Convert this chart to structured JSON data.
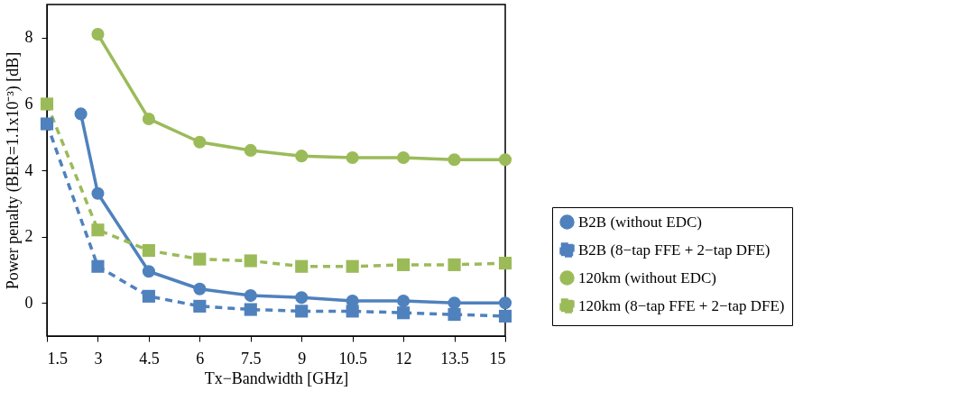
{
  "chart_data": {
    "type": "line",
    "xlabel": "Tx−Bandwidth [GHz]",
    "ylabel": "Power penalty (BER=1.1x10⁻³) [dB]",
    "xlim": [
      1.5,
      15
    ],
    "xticks": [
      1.5,
      3,
      4.5,
      6,
      7.5,
      9,
      10.5,
      12,
      13.5,
      15
    ],
    "ylim": [
      -1,
      9
    ],
    "yticks": [
      0,
      2,
      4,
      6,
      8
    ],
    "grid": false,
    "legend": "right",
    "series": [
      {
        "name": "B2B (without EDC)",
        "color": "#4f81bd",
        "marker": "circle",
        "line_style": "solid",
        "x": [
          2.5,
          3,
          4.5,
          6,
          7.5,
          9,
          10.5,
          12,
          13.5,
          15
        ],
        "values": [
          5.7,
          3.3,
          0.95,
          0.42,
          0.22,
          0.16,
          0.06,
          0.06,
          0.0,
          0.0
        ]
      },
      {
        "name": "B2B (8−tap FFE + 2−tap DFE)",
        "color": "#4f81bd",
        "marker": "square",
        "line_style": "dashed",
        "x": [
          1.5,
          3,
          4.5,
          6,
          7.5,
          9,
          10.5,
          12,
          13.5,
          15
        ],
        "values": [
          5.4,
          1.1,
          0.2,
          -0.1,
          -0.2,
          -0.25,
          -0.25,
          -0.3,
          -0.35,
          -0.4
        ]
      },
      {
        "name": "120km (without EDC)",
        "color": "#9bbb59",
        "marker": "circle",
        "line_style": "solid",
        "x": [
          3,
          4.5,
          6,
          7.5,
          9,
          10.5,
          12,
          13.5,
          15
        ],
        "values": [
          8.1,
          5.55,
          4.85,
          4.6,
          4.43,
          4.38,
          4.38,
          4.32,
          4.32
        ]
      },
      {
        "name": "120km (8−tap FFE + 2−tap DFE)",
        "color": "#9bbb59",
        "marker": "square",
        "line_style": "dashed",
        "x": [
          1.5,
          3,
          4.5,
          6,
          7.5,
          9,
          10.5,
          12,
          13.5,
          15
        ],
        "values": [
          6.0,
          2.2,
          1.58,
          1.32,
          1.27,
          1.1,
          1.1,
          1.15,
          1.15,
          1.2
        ]
      }
    ]
  }
}
